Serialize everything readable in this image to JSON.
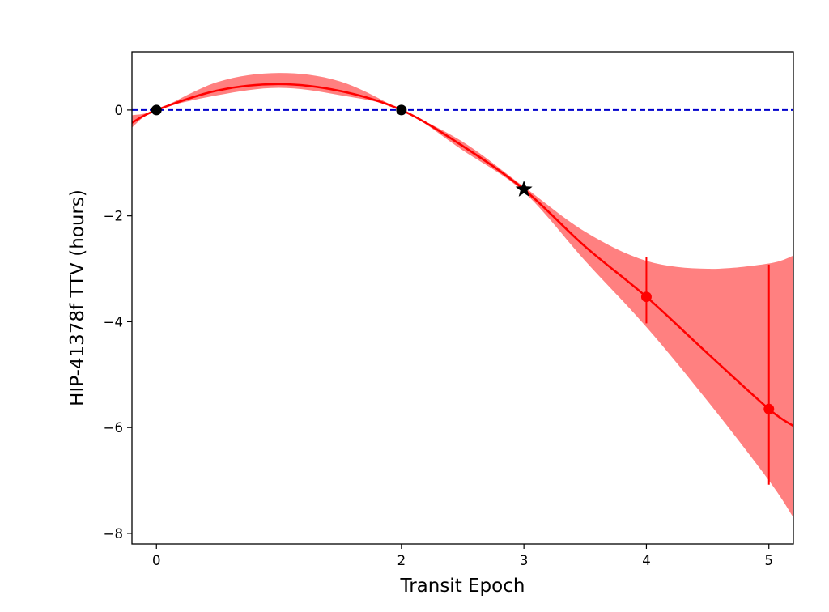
{
  "chart_data": {
    "type": "line",
    "xlabel": "Transit Epoch",
    "ylabel": "HIP-41378f TTV (hours)",
    "xlim": [
      -0.2,
      5.2
    ],
    "ylim": [
      -8.2,
      1.1
    ],
    "xticks": [
      0,
      2,
      3,
      4,
      5
    ],
    "yticks": [
      0,
      -2,
      -4,
      -6,
      -8
    ],
    "xtick_labels": [
      "0",
      "2",
      "3",
      "4",
      "5"
    ],
    "ytick_labels": [
      "0",
      "−2",
      "−4",
      "−6",
      "−8"
    ],
    "grid": false,
    "reference_line": {
      "y": 0,
      "style": "dashed",
      "color": "#0000cc"
    },
    "model_curve": {
      "color": "#ff0000",
      "x": [
        -0.2,
        0,
        0.5,
        1,
        1.5,
        2,
        2.5,
        3,
        3.5,
        4,
        4.5,
        5,
        5.2
      ],
      "y": [
        -0.24,
        0,
        0.37,
        0.49,
        0.36,
        0,
        -0.68,
        -1.5,
        -2.58,
        -3.53,
        -4.6,
        -5.65,
        -5.97
      ]
    },
    "uncertainty_band": {
      "color": "#ff8080",
      "x": [
        -0.2,
        0,
        0.5,
        1,
        1.5,
        2,
        2.5,
        3,
        3.5,
        4,
        4.5,
        5,
        5.2
      ],
      "upper": [
        -0.1,
        0,
        0.53,
        0.7,
        0.54,
        0,
        -0.6,
        -1.45,
        -2.3,
        -2.85,
        -3.0,
        -2.9,
        -2.75
      ],
      "lower": [
        -0.33,
        0,
        0.28,
        0.42,
        0.28,
        0,
        -0.76,
        -1.55,
        -2.85,
        -4.1,
        -5.5,
        -7.0,
        -7.7
      ]
    },
    "observed_points": {
      "color": "#000000",
      "marker": "circle",
      "x": [
        0,
        2
      ],
      "y": [
        0,
        0
      ]
    },
    "highlight_point": {
      "color": "#000000",
      "marker": "star",
      "x": 3,
      "y": -1.5
    },
    "predicted_points": {
      "color": "#ff0000",
      "marker": "circle",
      "x": [
        4,
        5
      ],
      "y": [
        -3.53,
        -5.65
      ],
      "err_upper": [
        -2.78,
        -2.92
      ],
      "err_lower": [
        -4.03,
        -7.08
      ]
    }
  }
}
